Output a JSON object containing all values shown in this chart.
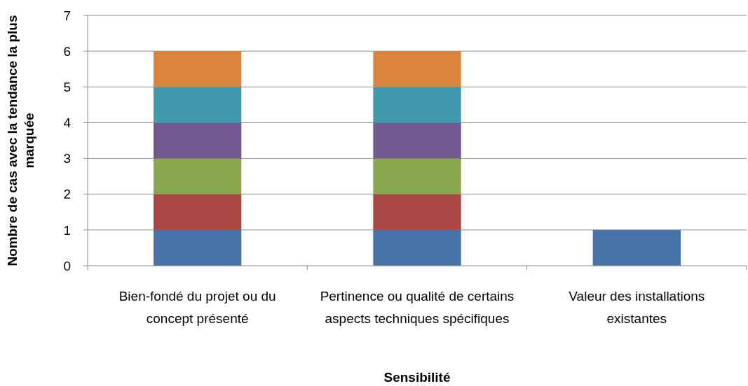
{
  "chart_data": {
    "type": "bar",
    "stacked": true,
    "xlabel": "Sensibilité",
    "ylabel": "Nombre de cas avec la tendance la plus marquée",
    "categories": [
      "Bien-fondé du projet ou du concept présenté",
      "Pertinence ou qualité de certains aspects techniques spécifiques",
      "Valeur des installations existantes"
    ],
    "series": [
      {
        "color": "#4572a7",
        "values": [
          1,
          1,
          1
        ]
      },
      {
        "color": "#aa4643",
        "values": [
          1,
          1,
          null
        ]
      },
      {
        "color": "#89a54e",
        "values": [
          1,
          1,
          null
        ]
      },
      {
        "color": "#71588f",
        "values": [
          1,
          1,
          null
        ]
      },
      {
        "color": "#4198af",
        "values": [
          1,
          1,
          null
        ]
      },
      {
        "color": "#db843d",
        "values": [
          1,
          1,
          null
        ]
      }
    ],
    "ylim": [
      0,
      7
    ],
    "yticks": [
      0,
      1,
      2,
      3,
      4,
      5,
      6,
      7
    ],
    "grid": "y"
  }
}
